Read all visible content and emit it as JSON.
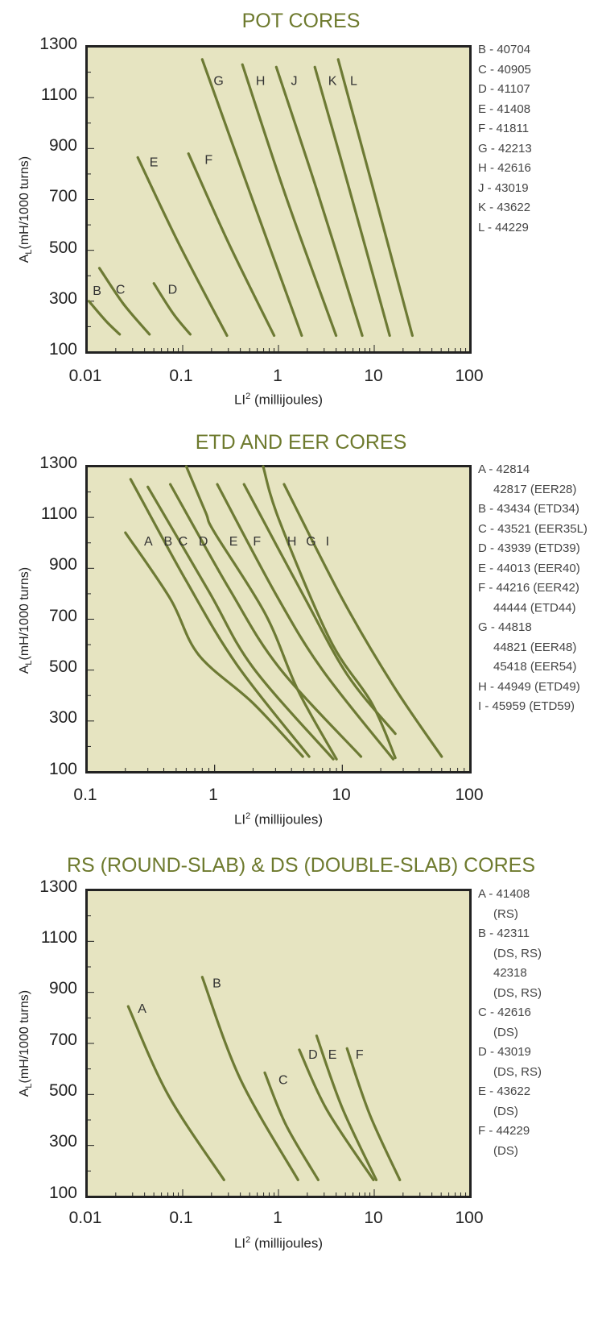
{
  "chart_data": [
    {
      "type": "line",
      "title": "POT CORES",
      "ylabel": "A",
      "ylabel_sub": "L",
      "ylabel_rest": "(mH/1000 turns)",
      "xlabel": "LI",
      "xlabel_sup": "2",
      "xlabel_rest": " (millijoules)",
      "xscale": "log",
      "xlim": [
        0.01,
        100
      ],
      "ylim": [
        100,
        1300
      ],
      "xticks": [
        "0.01",
        "0.1",
        "1",
        "10",
        "100"
      ],
      "yticks": [
        "1300",
        "1100",
        "900",
        "700",
        "500",
        "300",
        "100"
      ],
      "grid": false,
      "legend": [
        "B - 40704",
        "C - 40905",
        "D - 41107",
        "E - 41408",
        "F - 41811",
        "G - 42213",
        "H - 42616",
        "J - 43019",
        "K - 43622",
        "L - 44229"
      ],
      "series": [
        {
          "name": "B",
          "x": [
            0.0105,
            0.016,
            0.022
          ],
          "y": [
            300,
            220,
            170
          ]
        },
        {
          "name": "C",
          "x": [
            0.0135,
            0.024,
            0.045
          ],
          "y": [
            430,
            290,
            170
          ]
        },
        {
          "name": "D",
          "x": [
            0.05,
            0.08,
            0.12
          ],
          "y": [
            370,
            250,
            170
          ]
        },
        {
          "name": "E",
          "x": [
            0.034,
            0.09,
            0.29
          ],
          "y": [
            865,
            530,
            165
          ]
        },
        {
          "name": "F",
          "x": [
            0.115,
            0.3,
            0.9
          ],
          "y": [
            880,
            530,
            165
          ]
        },
        {
          "name": "G",
          "x": [
            0.16,
            0.5,
            1.75
          ],
          "y": [
            1250,
            730,
            165
          ]
        },
        {
          "name": "H",
          "x": [
            0.42,
            1.2,
            4.0
          ],
          "y": [
            1230,
            710,
            165
          ]
        },
        {
          "name": "J",
          "x": [
            0.95,
            2.6,
            7.5
          ],
          "y": [
            1220,
            720,
            165
          ]
        },
        {
          "name": "K",
          "x": [
            2.4,
            5.5,
            14.5
          ],
          "y": [
            1220,
            740,
            165
          ]
        },
        {
          "name": "L",
          "x": [
            4.2,
            9.0,
            25.0
          ],
          "y": [
            1250,
            790,
            165
          ]
        }
      ],
      "series_labels": [
        {
          "name": "B",
          "x": 0.0115,
          "y": 325
        },
        {
          "name": "C",
          "x": 0.02,
          "y": 330
        },
        {
          "name": "D",
          "x": 0.07,
          "y": 330
        },
        {
          "name": "E",
          "x": 0.045,
          "y": 830
        },
        {
          "name": "F",
          "x": 0.17,
          "y": 840
        },
        {
          "name": "G",
          "x": 0.21,
          "y": 1150
        },
        {
          "name": "H",
          "x": 0.58,
          "y": 1150
        },
        {
          "name": "J",
          "x": 1.35,
          "y": 1150
        },
        {
          "name": "K",
          "x": 3.3,
          "y": 1150
        },
        {
          "name": "L",
          "x": 5.6,
          "y": 1150
        }
      ]
    },
    {
      "type": "line",
      "title": "ETD AND EER CORES",
      "ylabel": "A",
      "ylabel_sub": "L",
      "ylabel_rest": "(mH/1000 turns)",
      "xlabel": "LI",
      "xlabel_sup": "2",
      "xlabel_rest": " (millijoules)",
      "xscale": "log",
      "xlim": [
        0.1,
        100
      ],
      "ylim": [
        100,
        1300
      ],
      "xticks": [
        "0.1",
        "1",
        "10",
        "100"
      ],
      "yticks": [
        "1300",
        "1100",
        "900",
        "700",
        "500",
        "300",
        "100"
      ],
      "grid": false,
      "legend": [
        "A - 42814",
        "42817 (EER28)",
        "B - 43434 (ETD34)",
        "C - 43521 (EER35L)",
        "D - 43939 (ETD39)",
        "E - 44013 (EER40)",
        "F - 44216 (EER42)",
        "44444 (ETD44)",
        "G - 44818",
        "44821 (EER48)",
        "45418 (EER54)",
        "H - 44949 (ETD49)",
        "I - 45959 (ETD59)"
      ],
      "legend_indent": [
        false,
        true,
        false,
        false,
        false,
        false,
        false,
        true,
        false,
        true,
        true,
        false,
        false
      ],
      "series": [
        {
          "name": "A",
          "x": [
            0.2,
            0.45,
            0.75,
            2.0,
            4.9
          ],
          "y": [
            1040,
            780,
            560,
            370,
            160
          ]
        },
        {
          "name": "B",
          "x": [
            0.22,
            0.6,
            1.5,
            5.5
          ],
          "y": [
            1250,
            850,
            520,
            160
          ]
        },
        {
          "name": "C",
          "x": [
            0.3,
            0.9,
            2.0,
            8.5
          ],
          "y": [
            1220,
            810,
            510,
            150
          ]
        },
        {
          "name": "D",
          "x": [
            0.45,
            1.3,
            3.2,
            14
          ],
          "y": [
            1230,
            820,
            510,
            160
          ]
        },
        {
          "name": "E",
          "x": [
            0.6,
            0.85,
            1.0,
            2.5,
            4.5,
            9.0
          ],
          "y": [
            1300,
            1120,
            1040,
            720,
            420,
            150
          ]
        },
        {
          "name": "F",
          "x": [
            1.05,
            3.0,
            7.0,
            25
          ],
          "y": [
            1230,
            800,
            500,
            150
          ]
        },
        {
          "name": "G",
          "x": [
            1.7,
            5.0,
            11,
            26
          ],
          "y": [
            1230,
            790,
            480,
            250
          ]
        },
        {
          "name": "H",
          "x": [
            2.4,
            3.2,
            8.0,
            17,
            26
          ],
          "y": [
            1300,
            1090,
            620,
            370,
            155
          ]
        },
        {
          "name": "I",
          "x": [
            3.5,
            10,
            25,
            60
          ],
          "y": [
            1230,
            780,
            440,
            160
          ]
        }
      ],
      "series_labels": [
        {
          "name": "A",
          "x": 0.28,
          "y": 990
        },
        {
          "name": "B",
          "x": 0.4,
          "y": 990
        },
        {
          "name": "C",
          "x": 0.52,
          "y": 990
        },
        {
          "name": "D",
          "x": 0.75,
          "y": 990
        },
        {
          "name": "E",
          "x": 1.3,
          "y": 990
        },
        {
          "name": "F",
          "x": 2.0,
          "y": 990
        },
        {
          "name": "H",
          "x": 3.7,
          "y": 990
        },
        {
          "name": "G",
          "x": 5.2,
          "y": 990
        },
        {
          "name": "I",
          "x": 7.4,
          "y": 990
        }
      ]
    },
    {
      "type": "line",
      "title": "RS (ROUND-SLAB) & DS (DOUBLE-SLAB) CORES",
      "ylabel": "A",
      "ylabel_sub": "L",
      "ylabel_rest": "(mH/1000 turns)",
      "xlabel": "LI",
      "xlabel_sup": "2",
      "xlabel_rest": " (millijoules)",
      "xscale": "log",
      "xlim": [
        0.01,
        100
      ],
      "ylim": [
        100,
        1300
      ],
      "xticks": [
        "0.01",
        "0.1",
        "1",
        "10",
        "100"
      ],
      "yticks": [
        "1300",
        "1100",
        "900",
        "700",
        "500",
        "300",
        "100"
      ],
      "grid": false,
      "legend": [
        "A - 41408",
        "(RS)",
        "B - 42311",
        "(DS, RS)",
        "42318",
        "(DS, RS)",
        "C - 42616",
        "(DS)",
        "D - 43019",
        "(DS, RS)",
        "E - 43622",
        "(DS)",
        "F - 44229",
        "(DS)"
      ],
      "legend_indent": [
        false,
        true,
        false,
        true,
        true,
        true,
        false,
        true,
        false,
        true,
        false,
        true,
        false,
        true
      ],
      "series": [
        {
          "name": "A",
          "x": [
            0.027,
            0.07,
            0.27
          ],
          "y": [
            845,
            500,
            165
          ]
        },
        {
          "name": "B",
          "x": [
            0.16,
            0.4,
            1.6
          ],
          "y": [
            960,
            560,
            165
          ]
        },
        {
          "name": "C",
          "x": [
            0.72,
            1.2,
            2.6
          ],
          "y": [
            585,
            380,
            165
          ]
        },
        {
          "name": "D",
          "x": [
            1.65,
            3.2,
            9.8
          ],
          "y": [
            675,
            440,
            165
          ]
        },
        {
          "name": "E",
          "x": [
            2.5,
            4.6,
            10.5
          ],
          "y": [
            730,
            450,
            165
          ]
        },
        {
          "name": "F",
          "x": [
            5.2,
            9.0,
            18.5
          ],
          "y": [
            680,
            420,
            165
          ]
        }
      ],
      "series_labels": [
        {
          "name": "A",
          "x": 0.034,
          "y": 820
        },
        {
          "name": "B",
          "x": 0.205,
          "y": 920
        },
        {
          "name": "C",
          "x": 1.0,
          "y": 540
        },
        {
          "name": "D",
          "x": 2.05,
          "y": 640
        },
        {
          "name": "E",
          "x": 3.3,
          "y": 640
        },
        {
          "name": "F",
          "x": 6.4,
          "y": 640
        }
      ]
    }
  ]
}
